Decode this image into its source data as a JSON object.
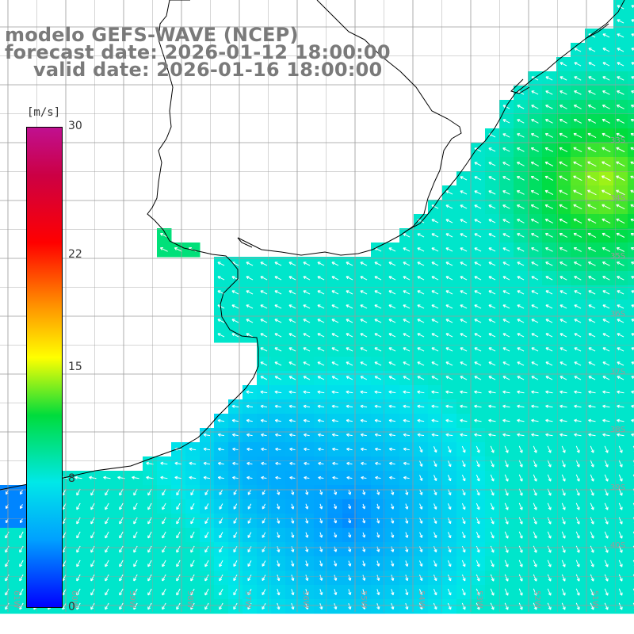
{
  "title": {
    "model": "modelo GEFS-WAVE (NCEP)",
    "forecast": "forecast date: 2026-01-12 18:00:00",
    "valid": "valid date: 2026-01-16 18:00:00"
  },
  "colorbar": {
    "unit": "[m/s]",
    "min": 0,
    "max": 30,
    "ticks": [
      "30",
      "22",
      "15",
      "8",
      "0"
    ],
    "tick_values": [
      30,
      22,
      15,
      8,
      0
    ]
  },
  "lat_labels": [
    "33S",
    "34S",
    "35S",
    "36S",
    "37S",
    "38S",
    "39S",
    "40S"
  ],
  "lon_labels": [
    "61W",
    "60W",
    "59W",
    "58W",
    "57W",
    "56W",
    "55W",
    "54W",
    "53W",
    "52W",
    "51W"
  ],
  "colors": {
    "land": "#ffffff",
    "grid": "#9a9a9a",
    "coast": "#000000",
    "arrow": "#ffffff",
    "title": "#7a7a7a"
  }
}
